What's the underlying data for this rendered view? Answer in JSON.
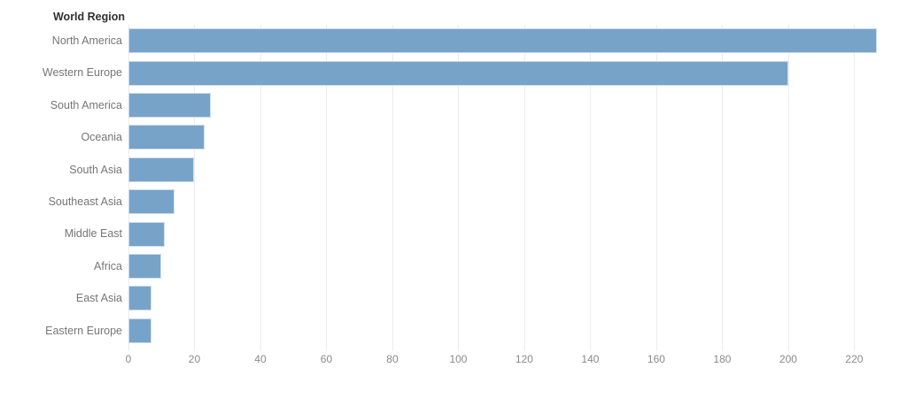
{
  "page": {
    "background_color": "#ffffff"
  },
  "chart_data": {
    "type": "bar",
    "orientation": "horizontal",
    "title": "World Region",
    "categories": [
      "North America",
      "Western Europe",
      "South America",
      "Oceania",
      "South Asia",
      "Southeast Asia",
      "Middle East",
      "Africa",
      "East Asia",
      "Eastern Europe"
    ],
    "values": [
      227,
      200,
      25,
      23,
      20,
      14,
      11,
      10,
      7,
      7
    ],
    "xlabel": "",
    "ylabel": "World Region",
    "xlim": [
      0,
      236
    ],
    "x_ticks": [
      0,
      20,
      40,
      60,
      80,
      100,
      120,
      140,
      160,
      180,
      200,
      220
    ],
    "grid": "vertical",
    "legend": "none",
    "bar_color": "#78a3c9",
    "bar_border_color": "#cadcec",
    "gridline_color": "#ececec",
    "category_label_color": "#767676",
    "tick_label_color": "#8a8a8a",
    "title_color": "#2f2f2f"
  }
}
